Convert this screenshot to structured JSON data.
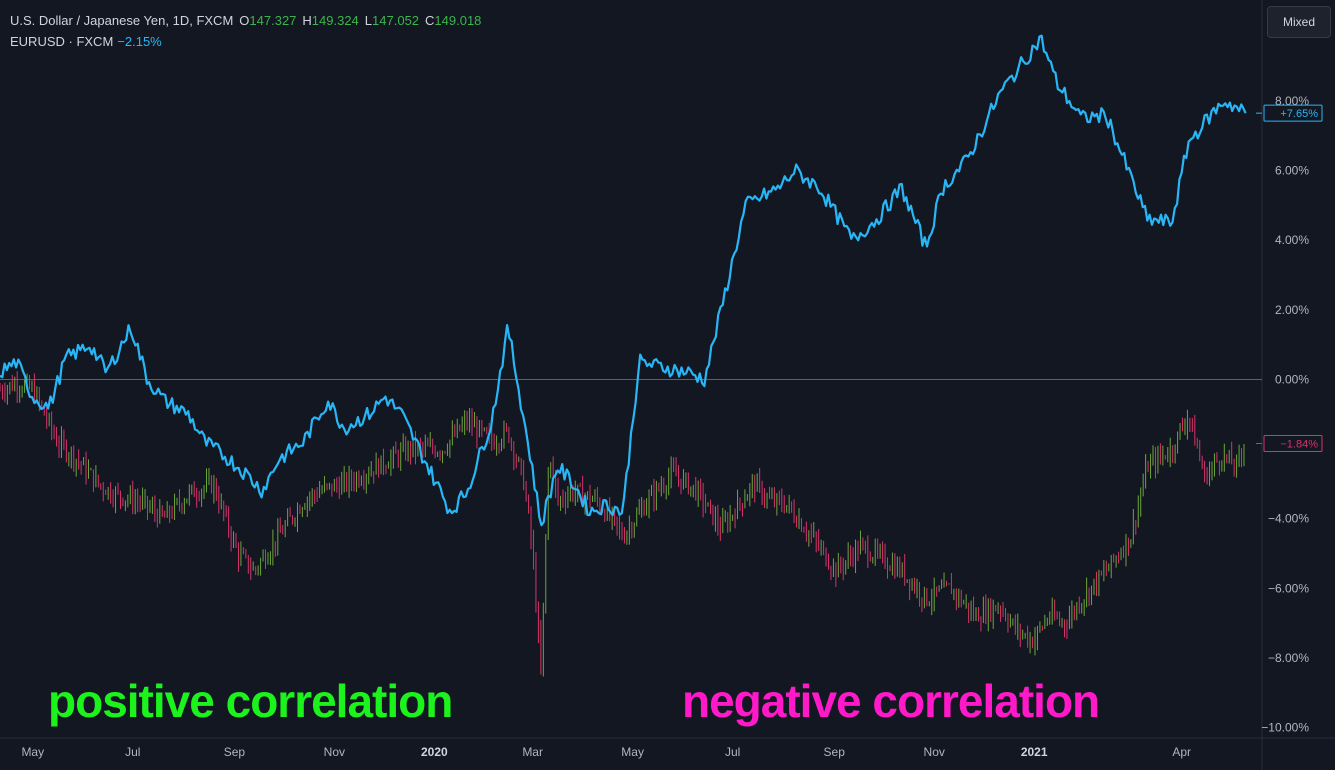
{
  "legend": {
    "title": "U.S. Dollar / Japanese Yen, 1D, FXCM",
    "o_label": "O",
    "o": "147.327",
    "h_label": "H",
    "h": "149.324",
    "l_label": "L",
    "l": "147.052",
    "c_label": "C",
    "c": "149.018",
    "compare_label": "EURUSD · FXCM",
    "compare_change": "−2.15%"
  },
  "scale_button": "Mixed",
  "annotations": {
    "positive": "positive correlation",
    "negative": "negative correlation"
  },
  "colors": {
    "background": "#131722",
    "line": "#29b6f6",
    "up": "#6ca63a",
    "down": "#d6336c",
    "zero_line": "#5d606b",
    "positive_text": "#1cf21c",
    "negative_text": "#ff19c8"
  },
  "chart_data": {
    "type": "line",
    "title": "U.S. Dollar / Japanese Yen, 1D, FXCM",
    "ylabel": "",
    "xlabel": "",
    "ylim": [
      -10.3,
      10.9
    ],
    "y_ticks": [
      "8.00%",
      "6.00%",
      "4.00%",
      "2.00%",
      "0.00%",
      "−4.00%",
      "−6.00%",
      "−8.00%",
      "−10.00%"
    ],
    "y_tick_values": [
      8,
      6,
      4,
      2,
      0,
      -4,
      -6,
      -8,
      -10
    ],
    "x_ticks": [
      "May",
      "Jul",
      "Sep",
      "Nov",
      "2020",
      "Mar",
      "May",
      "Jul",
      "Sep",
      "Nov",
      "2021",
      "Apr"
    ],
    "x_tick_bold": [
      false,
      false,
      false,
      false,
      true,
      false,
      false,
      false,
      false,
      false,
      true,
      false
    ],
    "x_tick_days": [
      0,
      61,
      123,
      184,
      245,
      305,
      366,
      427,
      489,
      550,
      611,
      701
    ],
    "x_range_days": [
      -20,
      750
    ],
    "last_values": {
      "series1": "+7.65%",
      "series2": "−1.84%"
    },
    "series": [
      {
        "style": "line",
        "x_days": [
          -20,
          -10,
          0,
          10,
          20,
          35,
          45,
          60,
          70,
          80,
          95,
          105,
          120,
          130,
          140,
          150,
          165,
          180,
          190,
          205,
          215,
          225,
          240,
          255,
          265,
          280,
          290,
          305,
          310,
          320,
          330,
          340,
          350,
          360,
          370,
          380,
          400,
          410,
          420,
          435,
          455,
          465,
          480,
          500,
          515,
          530,
          545,
          555,
          570,
          590,
          615,
          625,
          640,
          655,
          670,
          680,
          695,
          705,
          717,
          727,
          740
        ],
        "y": [
          0.2,
          0.5,
          -0.5,
          -0.8,
          0.6,
          1.0,
          0.2,
          1.5,
          0.0,
          -0.6,
          -1.0,
          -1.8,
          -2.3,
          -2.7,
          -3.2,
          -2.3,
          -1.8,
          -0.6,
          -1.4,
          -1.0,
          -0.5,
          -1.0,
          -2.4,
          -3.8,
          -3.2,
          -1.2,
          1.5,
          -2.6,
          -4.2,
          -2.5,
          -3.0,
          -3.8,
          -3.6,
          -3.8,
          0.5,
          0.4,
          0.2,
          0.0,
          2.0,
          5.0,
          5.5,
          6.0,
          5.5,
          4.0,
          4.6,
          5.5,
          3.8,
          5.5,
          6.3,
          8.2,
          9.8,
          8.5,
          7.5,
          7.6,
          5.8,
          4.6,
          4.5,
          6.8,
          7.5,
          8.0,
          7.65
        ]
      },
      {
        "style": "ohlc",
        "x_days": [
          -20,
          -10,
          0,
          15,
          25,
          40,
          50,
          65,
          80,
          95,
          110,
          125,
          135,
          150,
          165,
          175,
          190,
          210,
          230,
          250,
          265,
          280,
          290,
          300,
          305,
          310,
          315,
          320,
          330,
          345,
          360,
          375,
          390,
          405,
          420,
          440,
          450,
          460,
          475,
          490,
          505,
          520,
          530,
          545,
          560,
          575,
          590,
          600,
          610,
          620,
          630,
          640,
          655,
          670,
          680,
          695,
          705,
          715,
          725,
          735,
          740
        ],
        "y": [
          -0.3,
          -0.1,
          -0.3,
          -1.8,
          -2.2,
          -3.0,
          -3.3,
          -3.5,
          -4.0,
          -3.3,
          -3.0,
          -5.0,
          -5.5,
          -4.5,
          -3.5,
          -3.2,
          -3.0,
          -2.5,
          -2.0,
          -2.0,
          -1.2,
          -1.8,
          -1.5,
          -3.0,
          -5.0,
          -8.5,
          -2.0,
          -3.5,
          -3.2,
          -3.5,
          -4.5,
          -3.5,
          -2.7,
          -3.2,
          -4.3,
          -3.0,
          -3.5,
          -3.6,
          -4.5,
          -5.5,
          -4.8,
          -5.2,
          -5.5,
          -6.3,
          -6.0,
          -6.8,
          -6.5,
          -7.2,
          -7.5,
          -6.8,
          -7.0,
          -6.3,
          -5.5,
          -4.5,
          -2.5,
          -2.0,
          -1.0,
          -2.8,
          -2.2,
          -2.5,
          -1.84
        ]
      }
    ]
  }
}
